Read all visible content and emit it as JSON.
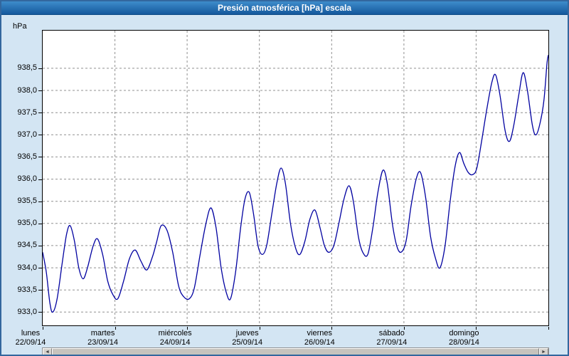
{
  "window": {
    "title": "Presión atmosférica [hPa] escala"
  },
  "scrollbar": {
    "left_arrow": "◄",
    "right_arrow": "►"
  },
  "chart_data": {
    "type": "line",
    "title": "Presión atmosférica [hPa] escala",
    "y_unit_label": "hPa",
    "ylim": [
      932.7,
      939.35
    ],
    "x_range_days": [
      0,
      7
    ],
    "grid": true,
    "grid_style": "dashed",
    "line_color": "#0000a0",
    "background_color": "#d3e5f3",
    "plot_background": "#ffffff",
    "yticks": [
      {
        "value": 933.0,
        "label": "933,0"
      },
      {
        "value": 933.5,
        "label": "933,5"
      },
      {
        "value": 934.0,
        "label": "934,0"
      },
      {
        "value": 934.5,
        "label": "934,5"
      },
      {
        "value": 935.0,
        "label": "935,0"
      },
      {
        "value": 935.5,
        "label": "935,5"
      },
      {
        "value": 936.0,
        "label": "936,0"
      },
      {
        "value": 936.5,
        "label": "936,5"
      },
      {
        "value": 937.0,
        "label": "937,0"
      },
      {
        "value": 937.5,
        "label": "937,5"
      },
      {
        "value": 938.0,
        "label": "938,0"
      },
      {
        "value": 938.5,
        "label": "938,5"
      }
    ],
    "x_days": [
      {
        "name": "lunes",
        "date": "22/09/14"
      },
      {
        "name": "martes",
        "date": "23/09/14"
      },
      {
        "name": "miércoles",
        "date": "24/09/14"
      },
      {
        "name": "jueves",
        "date": "25/09/14"
      },
      {
        "name": "viernes",
        "date": "26/09/14"
      },
      {
        "name": "sábado",
        "date": "27/09/14"
      },
      {
        "name": "domingo",
        "date": "28/09/14"
      }
    ],
    "series": [
      {
        "name": "Presión atmosférica",
        "unit": "hPa",
        "points": [
          [
            0.0,
            934.35
          ],
          [
            0.05,
            933.9
          ],
          [
            0.1,
            933.2
          ],
          [
            0.14,
            933.0
          ],
          [
            0.2,
            933.3
          ],
          [
            0.27,
            934.1
          ],
          [
            0.33,
            934.75
          ],
          [
            0.38,
            934.95
          ],
          [
            0.44,
            934.6
          ],
          [
            0.5,
            934.0
          ],
          [
            0.56,
            933.75
          ],
          [
            0.62,
            934.0
          ],
          [
            0.7,
            934.5
          ],
          [
            0.76,
            934.65
          ],
          [
            0.83,
            934.3
          ],
          [
            0.9,
            933.7
          ],
          [
            0.97,
            933.4
          ],
          [
            1.04,
            933.3
          ],
          [
            1.12,
            933.7
          ],
          [
            1.2,
            934.2
          ],
          [
            1.28,
            934.4
          ],
          [
            1.36,
            934.15
          ],
          [
            1.44,
            933.95
          ],
          [
            1.52,
            934.25
          ],
          [
            1.58,
            934.6
          ],
          [
            1.64,
            934.95
          ],
          [
            1.72,
            934.85
          ],
          [
            1.8,
            934.35
          ],
          [
            1.88,
            933.6
          ],
          [
            1.95,
            933.35
          ],
          [
            2.03,
            933.3
          ],
          [
            2.1,
            933.55
          ],
          [
            2.18,
            934.3
          ],
          [
            2.26,
            935.0
          ],
          [
            2.33,
            935.35
          ],
          [
            2.4,
            934.9
          ],
          [
            2.47,
            934.0
          ],
          [
            2.54,
            933.45
          ],
          [
            2.6,
            933.3
          ],
          [
            2.67,
            933.9
          ],
          [
            2.74,
            934.9
          ],
          [
            2.8,
            935.55
          ],
          [
            2.86,
            935.7
          ],
          [
            2.92,
            935.2
          ],
          [
            2.98,
            934.5
          ],
          [
            3.04,
            934.3
          ],
          [
            3.1,
            934.5
          ],
          [
            3.17,
            935.2
          ],
          [
            3.24,
            935.9
          ],
          [
            3.3,
            936.25
          ],
          [
            3.36,
            935.9
          ],
          [
            3.43,
            935.0
          ],
          [
            3.5,
            934.45
          ],
          [
            3.56,
            934.3
          ],
          [
            3.63,
            934.6
          ],
          [
            3.7,
            935.1
          ],
          [
            3.77,
            935.3
          ],
          [
            3.84,
            934.9
          ],
          [
            3.9,
            934.5
          ],
          [
            3.96,
            934.35
          ],
          [
            4.03,
            934.5
          ],
          [
            4.1,
            935.0
          ],
          [
            4.17,
            935.55
          ],
          [
            4.24,
            935.85
          ],
          [
            4.3,
            935.5
          ],
          [
            4.37,
            934.7
          ],
          [
            4.43,
            934.35
          ],
          [
            4.5,
            934.3
          ],
          [
            4.57,
            934.9
          ],
          [
            4.64,
            935.7
          ],
          [
            4.71,
            936.2
          ],
          [
            4.77,
            935.9
          ],
          [
            4.84,
            935.0
          ],
          [
            4.9,
            934.5
          ],
          [
            4.96,
            934.35
          ],
          [
            5.03,
            934.6
          ],
          [
            5.1,
            935.4
          ],
          [
            5.17,
            936.0
          ],
          [
            5.23,
            936.15
          ],
          [
            5.3,
            935.6
          ],
          [
            5.37,
            934.7
          ],
          [
            5.44,
            934.2
          ],
          [
            5.5,
            934.0
          ],
          [
            5.57,
            934.5
          ],
          [
            5.64,
            935.5
          ],
          [
            5.71,
            936.3
          ],
          [
            5.77,
            936.6
          ],
          [
            5.83,
            936.35
          ],
          [
            5.89,
            936.15
          ],
          [
            5.95,
            936.1
          ],
          [
            6.01,
            936.25
          ],
          [
            6.08,
            936.9
          ],
          [
            6.15,
            937.6
          ],
          [
            6.22,
            938.2
          ],
          [
            6.27,
            938.35
          ],
          [
            6.33,
            937.9
          ],
          [
            6.4,
            937.1
          ],
          [
            6.46,
            936.85
          ],
          [
            6.52,
            937.2
          ],
          [
            6.59,
            937.9
          ],
          [
            6.65,
            938.4
          ],
          [
            6.71,
            938.0
          ],
          [
            6.78,
            937.2
          ],
          [
            6.83,
            937.0
          ],
          [
            6.89,
            937.3
          ],
          [
            6.94,
            937.8
          ],
          [
            6.98,
            938.6
          ],
          [
            7.0,
            938.8
          ]
        ]
      }
    ]
  }
}
